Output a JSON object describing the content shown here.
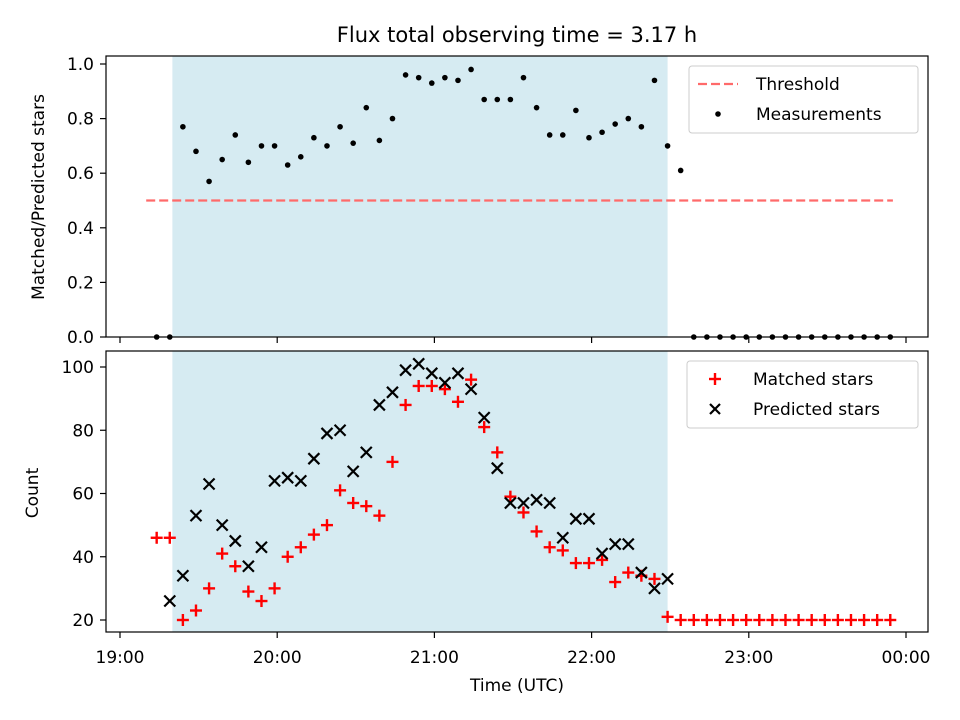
{
  "title": "Flux total observing time = 3.17 h",
  "x_tick_labels": [
    "19:00",
    "20:00",
    "21:00",
    "22:00",
    "23:00",
    "00:00"
  ],
  "colors": {
    "shade": "#add8e6",
    "threshold": "#ff6a6a",
    "matched": "#ff0000",
    "predicted": "#000000",
    "measurement": "#000000"
  },
  "chart_data": [
    {
      "type": "scatter",
      "panel": "top",
      "xlabel": "",
      "ylabel": "Matched/Predicted stars",
      "xlim": [
        "19:00",
        "00:00"
      ],
      "ylim": [
        0,
        1.0
      ],
      "y_ticks": [
        "0.0",
        "0.2",
        "0.4",
        "0.6",
        "0.8",
        "1.0"
      ],
      "shaded_span": [
        "19:20",
        "22:29"
      ],
      "threshold": {
        "name": "Threshold",
        "y": 0.5,
        "x_range": [
          "19:10",
          "23:55"
        ]
      },
      "legend": {
        "placement": "top-right",
        "entries": [
          "Threshold",
          "Measurements"
        ]
      },
      "series": [
        {
          "name": "Measurements",
          "x": [
            "19:14",
            "19:19",
            "19:24",
            "19:29",
            "19:34",
            "19:39",
            "19:44",
            "19:49",
            "19:54",
            "19:59",
            "20:04",
            "20:09",
            "20:14",
            "20:19",
            "20:24",
            "20:29",
            "20:34",
            "20:39",
            "20:44",
            "20:49",
            "20:54",
            "20:59",
            "21:04",
            "21:09",
            "21:14",
            "21:19",
            "21:24",
            "21:29",
            "21:34",
            "21:39",
            "21:44",
            "21:49",
            "21:54",
            "21:59",
            "22:04",
            "22:09",
            "22:14",
            "22:19",
            "22:24",
            "22:29",
            "22:34",
            "22:39",
            "22:44",
            "22:49",
            "22:54",
            "22:59",
            "23:04",
            "23:09",
            "23:14",
            "23:19",
            "23:24",
            "23:29",
            "23:34",
            "23:39",
            "23:44",
            "23:49",
            "23:54"
          ],
          "y": [
            0,
            0,
            0.77,
            0.68,
            0.57,
            0.65,
            0.74,
            0.64,
            0.7,
            0.7,
            0.63,
            0.66,
            0.73,
            0.7,
            0.77,
            0.71,
            0.84,
            0.72,
            0.8,
            0.96,
            0.95,
            0.93,
            0.95,
            0.94,
            0.98,
            0.87,
            0.87,
            0.87,
            0.95,
            0.84,
            0.74,
            0.74,
            0.83,
            0.73,
            0.75,
            0.78,
            0.8,
            0.77,
            0.94,
            0.7,
            0.61,
            0,
            0,
            0,
            0,
            0,
            0,
            0,
            0,
            0,
            0,
            0,
            0,
            0,
            0,
            0,
            0
          ]
        }
      ]
    },
    {
      "type": "scatter",
      "panel": "bottom",
      "xlabel": "Time (UTC)",
      "ylabel": "Count",
      "xlim": [
        "19:00",
        "00:00"
      ],
      "ylim": [
        18,
        105
      ],
      "y_ticks": [
        "20",
        "40",
        "60",
        "80",
        "100"
      ],
      "shaded_span": [
        "19:20",
        "22:29"
      ],
      "legend": {
        "placement": "top-right",
        "entries": [
          "Matched stars",
          "Predicted stars"
        ]
      },
      "series": [
        {
          "name": "Matched stars",
          "marker": "+",
          "x": [
            "19:14",
            "19:19",
            "19:24",
            "19:29",
            "19:34",
            "19:39",
            "19:44",
            "19:49",
            "19:54",
            "19:59",
            "20:04",
            "20:09",
            "20:14",
            "20:19",
            "20:24",
            "20:29",
            "20:34",
            "20:39",
            "20:44",
            "20:49",
            "20:54",
            "20:59",
            "21:04",
            "21:09",
            "21:14",
            "21:19",
            "21:24",
            "21:29",
            "21:34",
            "21:39",
            "21:44",
            "21:49",
            "21:54",
            "21:59",
            "22:04",
            "22:09",
            "22:14",
            "22:19",
            "22:24",
            "22:29",
            "22:34",
            "22:39",
            "22:44",
            "22:49",
            "22:54",
            "22:59",
            "23:04",
            "23:09",
            "23:14",
            "23:19",
            "23:24",
            "23:29",
            "23:34",
            "23:39",
            "23:44",
            "23:49",
            "23:54"
          ],
          "y": [
            46,
            46,
            20,
            23,
            30,
            41,
            37,
            29,
            26,
            30,
            40,
            43,
            47,
            50,
            61,
            57,
            56,
            53,
            70,
            88,
            94,
            94,
            93,
            89,
            96,
            81,
            73,
            59,
            54,
            48,
            43,
            42,
            38,
            38,
            39,
            32,
            35,
            34,
            33,
            21,
            20,
            20,
            20,
            20,
            20,
            20,
            20,
            20,
            20,
            20,
            20,
            20,
            20,
            20,
            20,
            20,
            20
          ]
        },
        {
          "name": "Predicted stars",
          "marker": "x",
          "x": [
            "19:19",
            "19:24",
            "19:29",
            "19:34",
            "19:39",
            "19:44",
            "19:49",
            "19:54",
            "19:59",
            "20:04",
            "20:09",
            "20:14",
            "20:19",
            "20:24",
            "20:29",
            "20:34",
            "20:39",
            "20:44",
            "20:49",
            "20:54",
            "20:59",
            "21:04",
            "21:09",
            "21:14",
            "21:19",
            "21:24",
            "21:29",
            "21:34",
            "21:39",
            "21:44",
            "21:49",
            "21:54",
            "21:59",
            "22:04",
            "22:09",
            "22:14",
            "22:19",
            "22:24",
            "22:29"
          ],
          "y": [
            26,
            34,
            53,
            63,
            50,
            45,
            37,
            43,
            64,
            65,
            64,
            71,
            79,
            80,
            67,
            73,
            88,
            92,
            99,
            101,
            98,
            95,
            98,
            93,
            84,
            68,
            57,
            57,
            58,
            57,
            46,
            52,
            52,
            41,
            44,
            44,
            35,
            30,
            33
          ]
        }
      ]
    }
  ]
}
